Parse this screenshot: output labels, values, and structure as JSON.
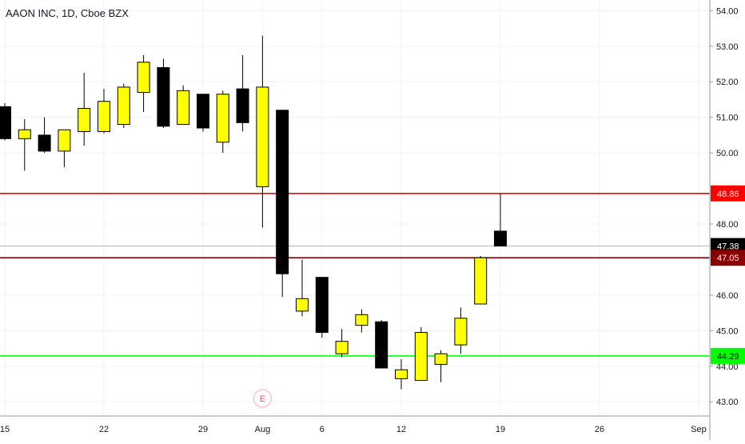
{
  "header": {
    "symbol_title": "AAON INC, 1D, Cboe BZX"
  },
  "colors": {
    "bull_fill": "#ffff00",
    "bear_fill": "#000000",
    "candle_border": "#000000",
    "red_line": "#ff0000",
    "dark_red_line": "#8b0000",
    "green_line": "#00ff00",
    "last_price_line": "#b2b5be",
    "grid": "#f0f3fa",
    "axis_text": "#131722",
    "earnings_marker": "#f7525f"
  },
  "chart_data": {
    "type": "candlestick",
    "title": "AAON INC, 1D, Cboe BZX",
    "ylim": [
      42.6,
      54.3
    ],
    "y_ticks": [
      43.0,
      44.0,
      45.0,
      46.0,
      47.0,
      48.0,
      50.0,
      51.0,
      52.0,
      53.0,
      54.0
    ],
    "y_tick_labels": [
      "43.00",
      "44.00",
      "45.00",
      "46.00",
      "47.00",
      "48.00",
      "50.00",
      "51.00",
      "52.00",
      "53.00",
      "54.00"
    ],
    "x_ticks": [
      {
        "label": "15",
        "index": 0
      },
      {
        "label": "22",
        "index": 5
      },
      {
        "label": "29",
        "index": 10
      },
      {
        "label": "Aug",
        "index": 13
      },
      {
        "label": "6",
        "index": 16
      },
      {
        "label": "12",
        "index": 20
      },
      {
        "label": "19",
        "index": 25
      },
      {
        "label": "26",
        "index": 30
      },
      {
        "label": "Sep",
        "index": 35
      }
    ],
    "candles": [
      {
        "open": 51.3,
        "high": 51.4,
        "low": 50.35,
        "close": 50.4
      },
      {
        "open": 50.4,
        "high": 50.95,
        "low": 49.5,
        "close": 50.65
      },
      {
        "open": 50.5,
        "high": 51.0,
        "low": 50.0,
        "close": 50.05
      },
      {
        "open": 50.05,
        "high": 50.65,
        "low": 49.6,
        "close": 50.65
      },
      {
        "open": 50.6,
        "high": 52.25,
        "low": 50.2,
        "close": 51.25
      },
      {
        "open": 50.6,
        "high": 51.8,
        "low": 50.55,
        "close": 51.45
      },
      {
        "open": 50.8,
        "high": 51.95,
        "low": 50.7,
        "close": 51.85
      },
      {
        "open": 51.7,
        "high": 52.75,
        "low": 51.15,
        "close": 52.55
      },
      {
        "open": 52.4,
        "high": 52.65,
        "low": 50.7,
        "close": 50.75
      },
      {
        "open": 50.8,
        "high": 51.9,
        "low": 50.8,
        "close": 51.75
      },
      {
        "open": 51.65,
        "high": 51.65,
        "low": 50.6,
        "close": 50.7
      },
      {
        "open": 50.3,
        "high": 51.75,
        "low": 50.0,
        "close": 51.65
      },
      {
        "open": 51.8,
        "high": 52.75,
        "low": 50.6,
        "close": 50.85
      },
      {
        "open": 49.05,
        "high": 53.3,
        "low": 47.9,
        "close": 51.85
      },
      {
        "open": 51.2,
        "high": 51.2,
        "low": 45.95,
        "close": 46.6
      },
      {
        "open": 45.55,
        "high": 47.0,
        "low": 45.4,
        "close": 45.9
      },
      {
        "open": 46.5,
        "high": 46.5,
        "low": 44.8,
        "close": 44.95
      },
      {
        "open": 44.35,
        "high": 45.05,
        "low": 44.25,
        "close": 44.7
      },
      {
        "open": 45.15,
        "high": 45.6,
        "low": 44.95,
        "close": 45.45
      },
      {
        "open": 45.25,
        "high": 45.3,
        "low": 44.0,
        "close": 43.95
      },
      {
        "open": 43.65,
        "high": 44.2,
        "low": 43.35,
        "close": 43.9
      },
      {
        "open": 43.6,
        "high": 45.1,
        "low": 43.6,
        "close": 44.95
      },
      {
        "open": 44.05,
        "high": 44.45,
        "low": 43.55,
        "close": 44.35
      },
      {
        "open": 44.6,
        "high": 45.65,
        "low": 44.35,
        "close": 45.35
      },
      {
        "open": 45.75,
        "high": 47.1,
        "low": 45.75,
        "close": 47.05
      },
      {
        "open": 47.8,
        "high": 48.86,
        "low": 47.38,
        "close": 47.38
      }
    ],
    "levels": [
      {
        "name": "red-level",
        "value": 48.86,
        "label": "48.86",
        "color": "#ff0000"
      },
      {
        "name": "last-price",
        "value": 47.38,
        "label": "47.38",
        "color": "#000000"
      },
      {
        "name": "dark-red-level",
        "value": 47.05,
        "label": "47.05",
        "color": "#8b0000"
      },
      {
        "name": "green-level",
        "value": 44.29,
        "label": "44.29",
        "color": "#00ff00"
      }
    ],
    "earnings_marker": {
      "label": "E",
      "index": 13
    }
  }
}
